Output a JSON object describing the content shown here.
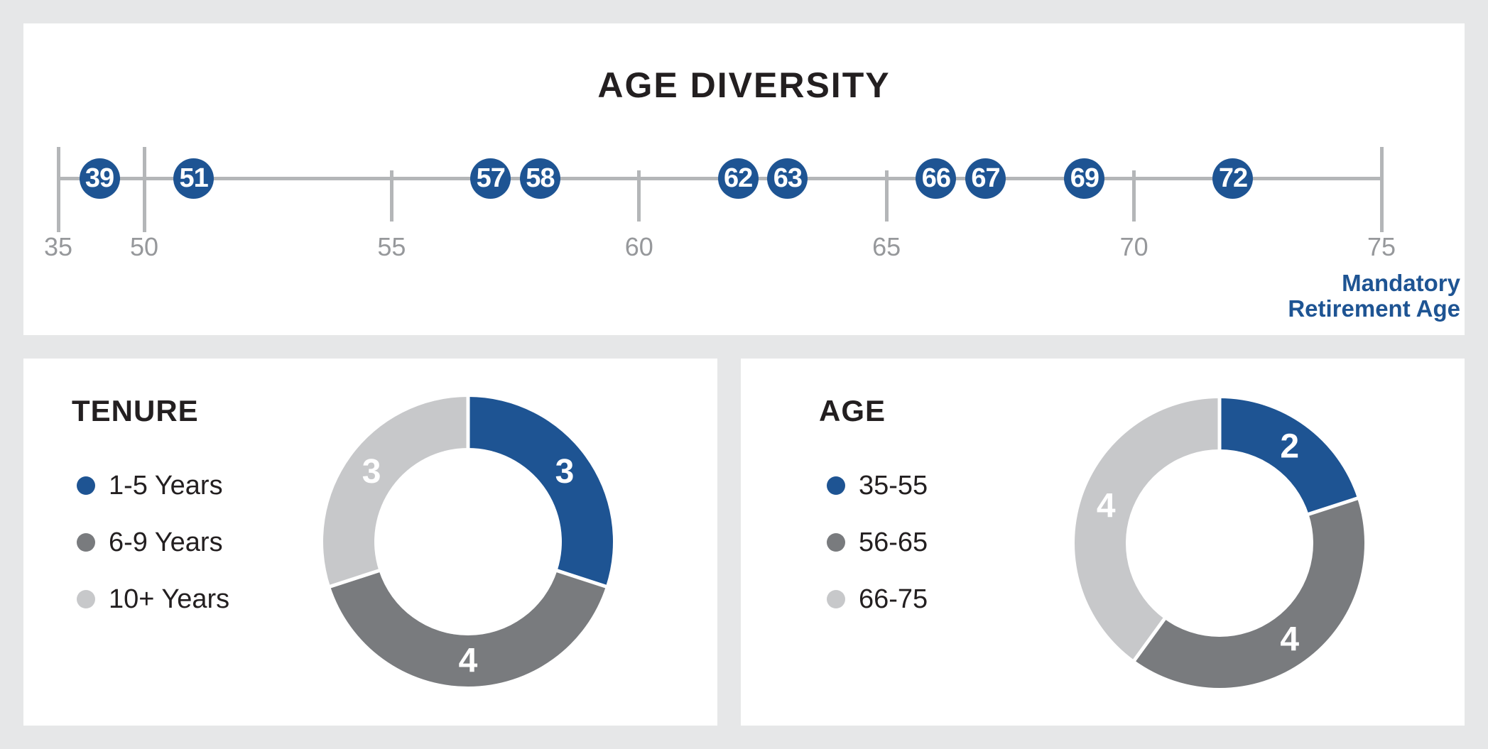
{
  "page": {
    "background": "#e6e7e8",
    "panel_background": "#ffffff",
    "text_color": "#231f20"
  },
  "palette": {
    "blue": "#1e5493",
    "dark_gray": "#797b7e",
    "light_gray": "#c7c8ca",
    "axis_gray": "#b4b6b8",
    "tick_label_gray": "#96989b",
    "value_label_white": "#ffffff"
  },
  "chart_data": [
    {
      "id": "age_diversity",
      "type": "scatter",
      "title": "AGE DIVERSITY",
      "x": [
        39,
        51,
        57,
        58,
        62,
        63,
        66,
        67,
        69,
        72
      ],
      "xlim": [
        35,
        75
      ],
      "xticks": [
        {
          "value": 35,
          "label": "35",
          "major": true
        },
        {
          "value": 50,
          "label": "50",
          "major": true
        },
        {
          "value": 55,
          "label": "55",
          "major": false
        },
        {
          "value": 60,
          "label": "60",
          "major": false
        },
        {
          "value": 65,
          "label": "65",
          "major": false
        },
        {
          "value": 70,
          "label": "70",
          "major": false
        },
        {
          "value": 75,
          "label": "75",
          "major": true
        }
      ],
      "axis_break_between": [
        35,
        50
      ],
      "grid": false,
      "marker_color": "#1e5493",
      "marker_text_color": "#ffffff",
      "annotation": {
        "lines": [
          "Mandatory",
          "Retirement Age"
        ],
        "color": "#1e5493"
      }
    },
    {
      "id": "tenure",
      "type": "pie",
      "donut": true,
      "title": "TENURE",
      "categories": [
        "1-5 Years",
        "6-9 Years",
        "10+ Years"
      ],
      "values": [
        3,
        4,
        3
      ],
      "value_labels": [
        "3",
        "4",
        "3"
      ],
      "colors": [
        "#1e5493",
        "#797b7e",
        "#c7c8ca"
      ],
      "start_angle_deg": 0,
      "direction": "clockwise",
      "legend_position": "left",
      "value_label_color": "#ffffff"
    },
    {
      "id": "age",
      "type": "pie",
      "donut": true,
      "title": "AGE",
      "categories": [
        "35-55",
        "56-65",
        "66-75"
      ],
      "values": [
        2,
        4,
        4
      ],
      "value_labels": [
        "2",
        "4",
        "4"
      ],
      "colors": [
        "#1e5493",
        "#797b7e",
        "#c7c8ca"
      ],
      "start_angle_deg": 0,
      "direction": "clockwise",
      "legend_position": "left",
      "value_label_color": "#ffffff"
    }
  ]
}
